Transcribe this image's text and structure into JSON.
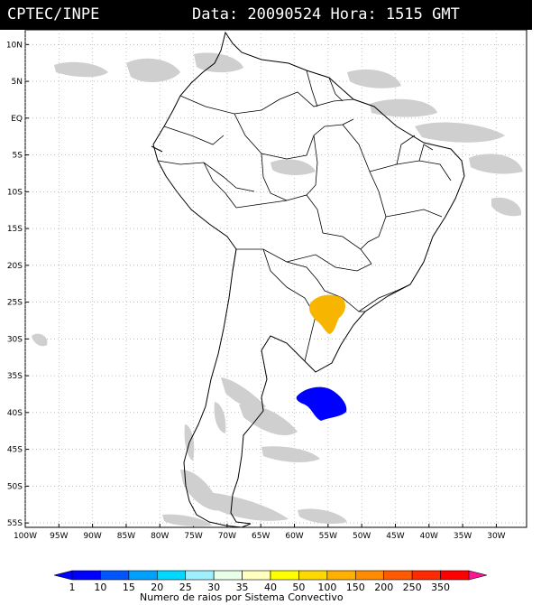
{
  "header": {
    "agency": "CPTEC/INPE",
    "datetime": "Data: 20090524 Hora: 1515 GMT"
  },
  "map": {
    "lat_labels": [
      "10N",
      "5N",
      "EQ",
      "5S",
      "10S",
      "15S",
      "20S",
      "25S",
      "30S",
      "35S",
      "40S",
      "45S",
      "50S",
      "55S"
    ],
    "lon_labels": [
      "100W",
      "95W",
      "90W",
      "85W",
      "80W",
      "75W",
      "70W",
      "65W",
      "60W",
      "55W",
      "50W",
      "45W",
      "40W",
      "35W",
      "30W"
    ],
    "lat_range": [
      10,
      -55
    ],
    "lon_range": [
      -100,
      -30
    ],
    "grid": "dotted"
  },
  "features": [
    {
      "name": "convective-system-yellow",
      "category": "40",
      "lat": -26.5,
      "lon": -56.5,
      "color": "#f7b500"
    },
    {
      "name": "convective-system-blue",
      "category": "1",
      "lat": -38.6,
      "lon": -56.0,
      "color": "#0000ff"
    }
  ],
  "legend": {
    "values": [
      "1",
      "10",
      "15",
      "20",
      "25",
      "30",
      "35",
      "40",
      "50",
      "100",
      "150",
      "200",
      "250",
      "350"
    ],
    "colors": [
      "#0000ff",
      "#0055ff",
      "#00a0ff",
      "#00d8ff",
      "#9ef0ff",
      "#e8ffe8",
      "#ffffc0",
      "#ffff00",
      "#ffd800",
      "#ffb000",
      "#ff8c00",
      "#ff5a00",
      "#ff2a00",
      "#ff0000"
    ],
    "caption": "Numero de raios por Sistema Convectivo"
  }
}
